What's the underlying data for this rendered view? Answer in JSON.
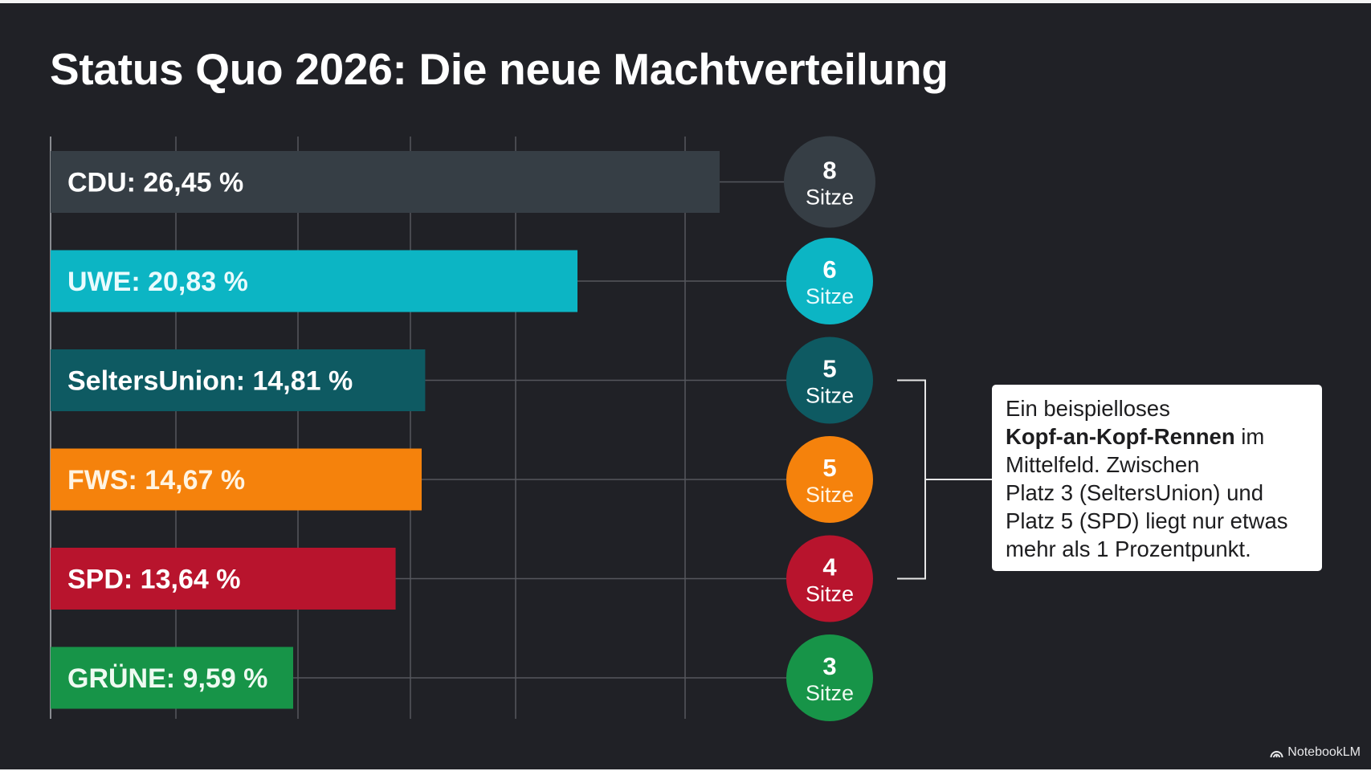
{
  "title": "Status Quo 2026: Die neue Machtverteilung",
  "colors": {
    "background": "#202126",
    "grid": "#55575d",
    "bracket": "#e6e6e6"
  },
  "chart_data": {
    "type": "bar",
    "orientation": "horizontal",
    "title": "Status Quo 2026: Die neue Machtverteilung",
    "xlabel": "",
    "ylabel": "",
    "unit": "%",
    "grid": true,
    "categories": [
      "CDU",
      "UWE",
      "SeltersUnion",
      "FWS",
      "SPD",
      "GRÜNE"
    ],
    "values": [
      26.45,
      20.83,
      14.81,
      14.67,
      13.64,
      9.59
    ],
    "labels": [
      "CDU: 26,45 %",
      "UWE: 20,83 %",
      "SeltersUnion: 14,81 %",
      "FWS: 14,67 %",
      "SPD: 13,64 %",
      "GRÜNE: 9,59 %"
    ],
    "seats": [
      8,
      6,
      5,
      5,
      4,
      3
    ],
    "seat_unit": "Sitze",
    "colors": [
      "#363e45",
      "#0cb5c4",
      "#0e5a62",
      "#f5820c",
      "#b8142d",
      "#179448"
    ],
    "label_colors": [
      "#ffffff",
      "#e9fbfd",
      "#ffffff",
      "#fff4e2",
      "#ffffff",
      "#eefaf1"
    ],
    "bracket_group": [
      "SeltersUnion",
      "FWS",
      "SPD"
    ]
  },
  "annotation": {
    "line1": "Ein beispielloses",
    "bold": "Kopf-an-Kopf-Rennen",
    "after_bold": " im",
    "line3": "Mittelfeld. Zwischen",
    "line4": "Platz 3 (SeltersUnion) und",
    "line5": "Platz 5 (SPD) liegt nur etwas",
    "line6": "mehr als 1 Prozentpunkt."
  },
  "branding": {
    "logo_text": "NotebookLM",
    "logo_icon": "notebooklm-icon"
  }
}
